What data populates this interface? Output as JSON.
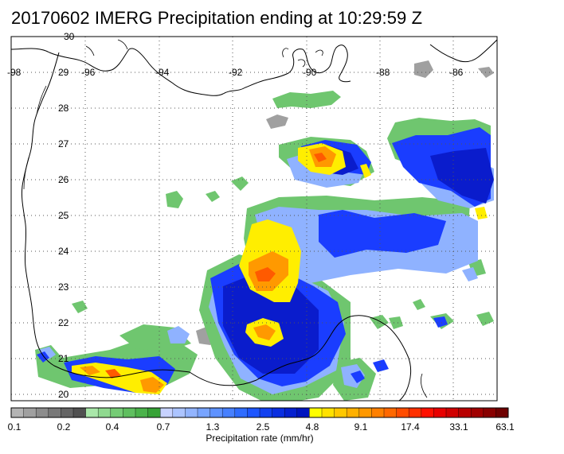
{
  "title": "20170602 IMERG Precipitation ending at 10:29:59 Z",
  "map": {
    "lon_labels": [
      "-98",
      "-96",
      "-94",
      "-92",
      "-90",
      "-88",
      "-86"
    ],
    "lat_labels": [
      "30",
      "29",
      "28",
      "27",
      "26",
      "25",
      "24",
      "23",
      "22",
      "21",
      "20"
    ]
  },
  "colorbar": {
    "label": "Precipitation rate (mm/hr)",
    "ticks": [
      "0.1",
      "0.2",
      "0.4",
      "0.7",
      "1.3",
      "2.5",
      "4.8",
      "9.1",
      "17.4",
      "33.1",
      "63.1"
    ],
    "colors": [
      "#b4b4b4",
      "#a0a0a0",
      "#8c8c8c",
      "#787878",
      "#646464",
      "#505050",
      "#a9e7a9",
      "#8fd98f",
      "#75cc75",
      "#5fbf5f",
      "#4ab24a",
      "#37a337",
      "#c7d2ff",
      "#acc4ff",
      "#92b4ff",
      "#78a4ff",
      "#5e92ff",
      "#4780ff",
      "#2f6cff",
      "#1e56ff",
      "#1240f0",
      "#0a2ee0",
      "#0520cf",
      "#0014bf",
      "#ffff00",
      "#ffe100",
      "#ffc800",
      "#ffb000",
      "#ff9800",
      "#ff8000",
      "#ff6800",
      "#ff4c00",
      "#ff3000",
      "#ff1000",
      "#e80000",
      "#d00000",
      "#b80000",
      "#a00000",
      "#880000",
      "#6e0000"
    ]
  },
  "palette": {
    "gray": "#a0a0a0",
    "green": "#6fc66f",
    "light_blue": "#8fb2ff",
    "blue": "#1a3dff",
    "dark_blue": "#0a1ccc",
    "yellow": "#ffee00",
    "orange": "#ff9900",
    "red_orange": "#ff5a00",
    "coast": "#000000",
    "grid": "#555555"
  }
}
